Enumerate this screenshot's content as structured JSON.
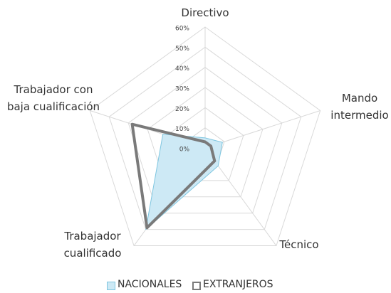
{
  "chart_data": {
    "type": "radar",
    "categories": [
      "Directivo",
      "Mando intermedio",
      "Técnico",
      "Trabajador cualificado",
      "Trabajador con baja cualificación"
    ],
    "series": [
      {
        "name": "NACIONALES",
        "color": "#7fc6e0",
        "fill": "#cde9f5",
        "values": [
          5,
          9,
          11,
          50,
          22
        ]
      },
      {
        "name": "EXTRANJEROS",
        "color": "#7a7a7a",
        "values": [
          3,
          3,
          8,
          49,
          38
        ]
      }
    ],
    "ylim": [
      0,
      60
    ],
    "yticks": [
      {
        "value": 0,
        "label": "0%"
      },
      {
        "value": 10,
        "label": "10%"
      },
      {
        "value": 20,
        "label": "20%"
      },
      {
        "value": 30,
        "label": "30%"
      },
      {
        "value": 40,
        "label": "40%"
      },
      {
        "value": 50,
        "label": "50%"
      },
      {
        "value": 60,
        "label": "60%"
      }
    ],
    "grid": true
  }
}
